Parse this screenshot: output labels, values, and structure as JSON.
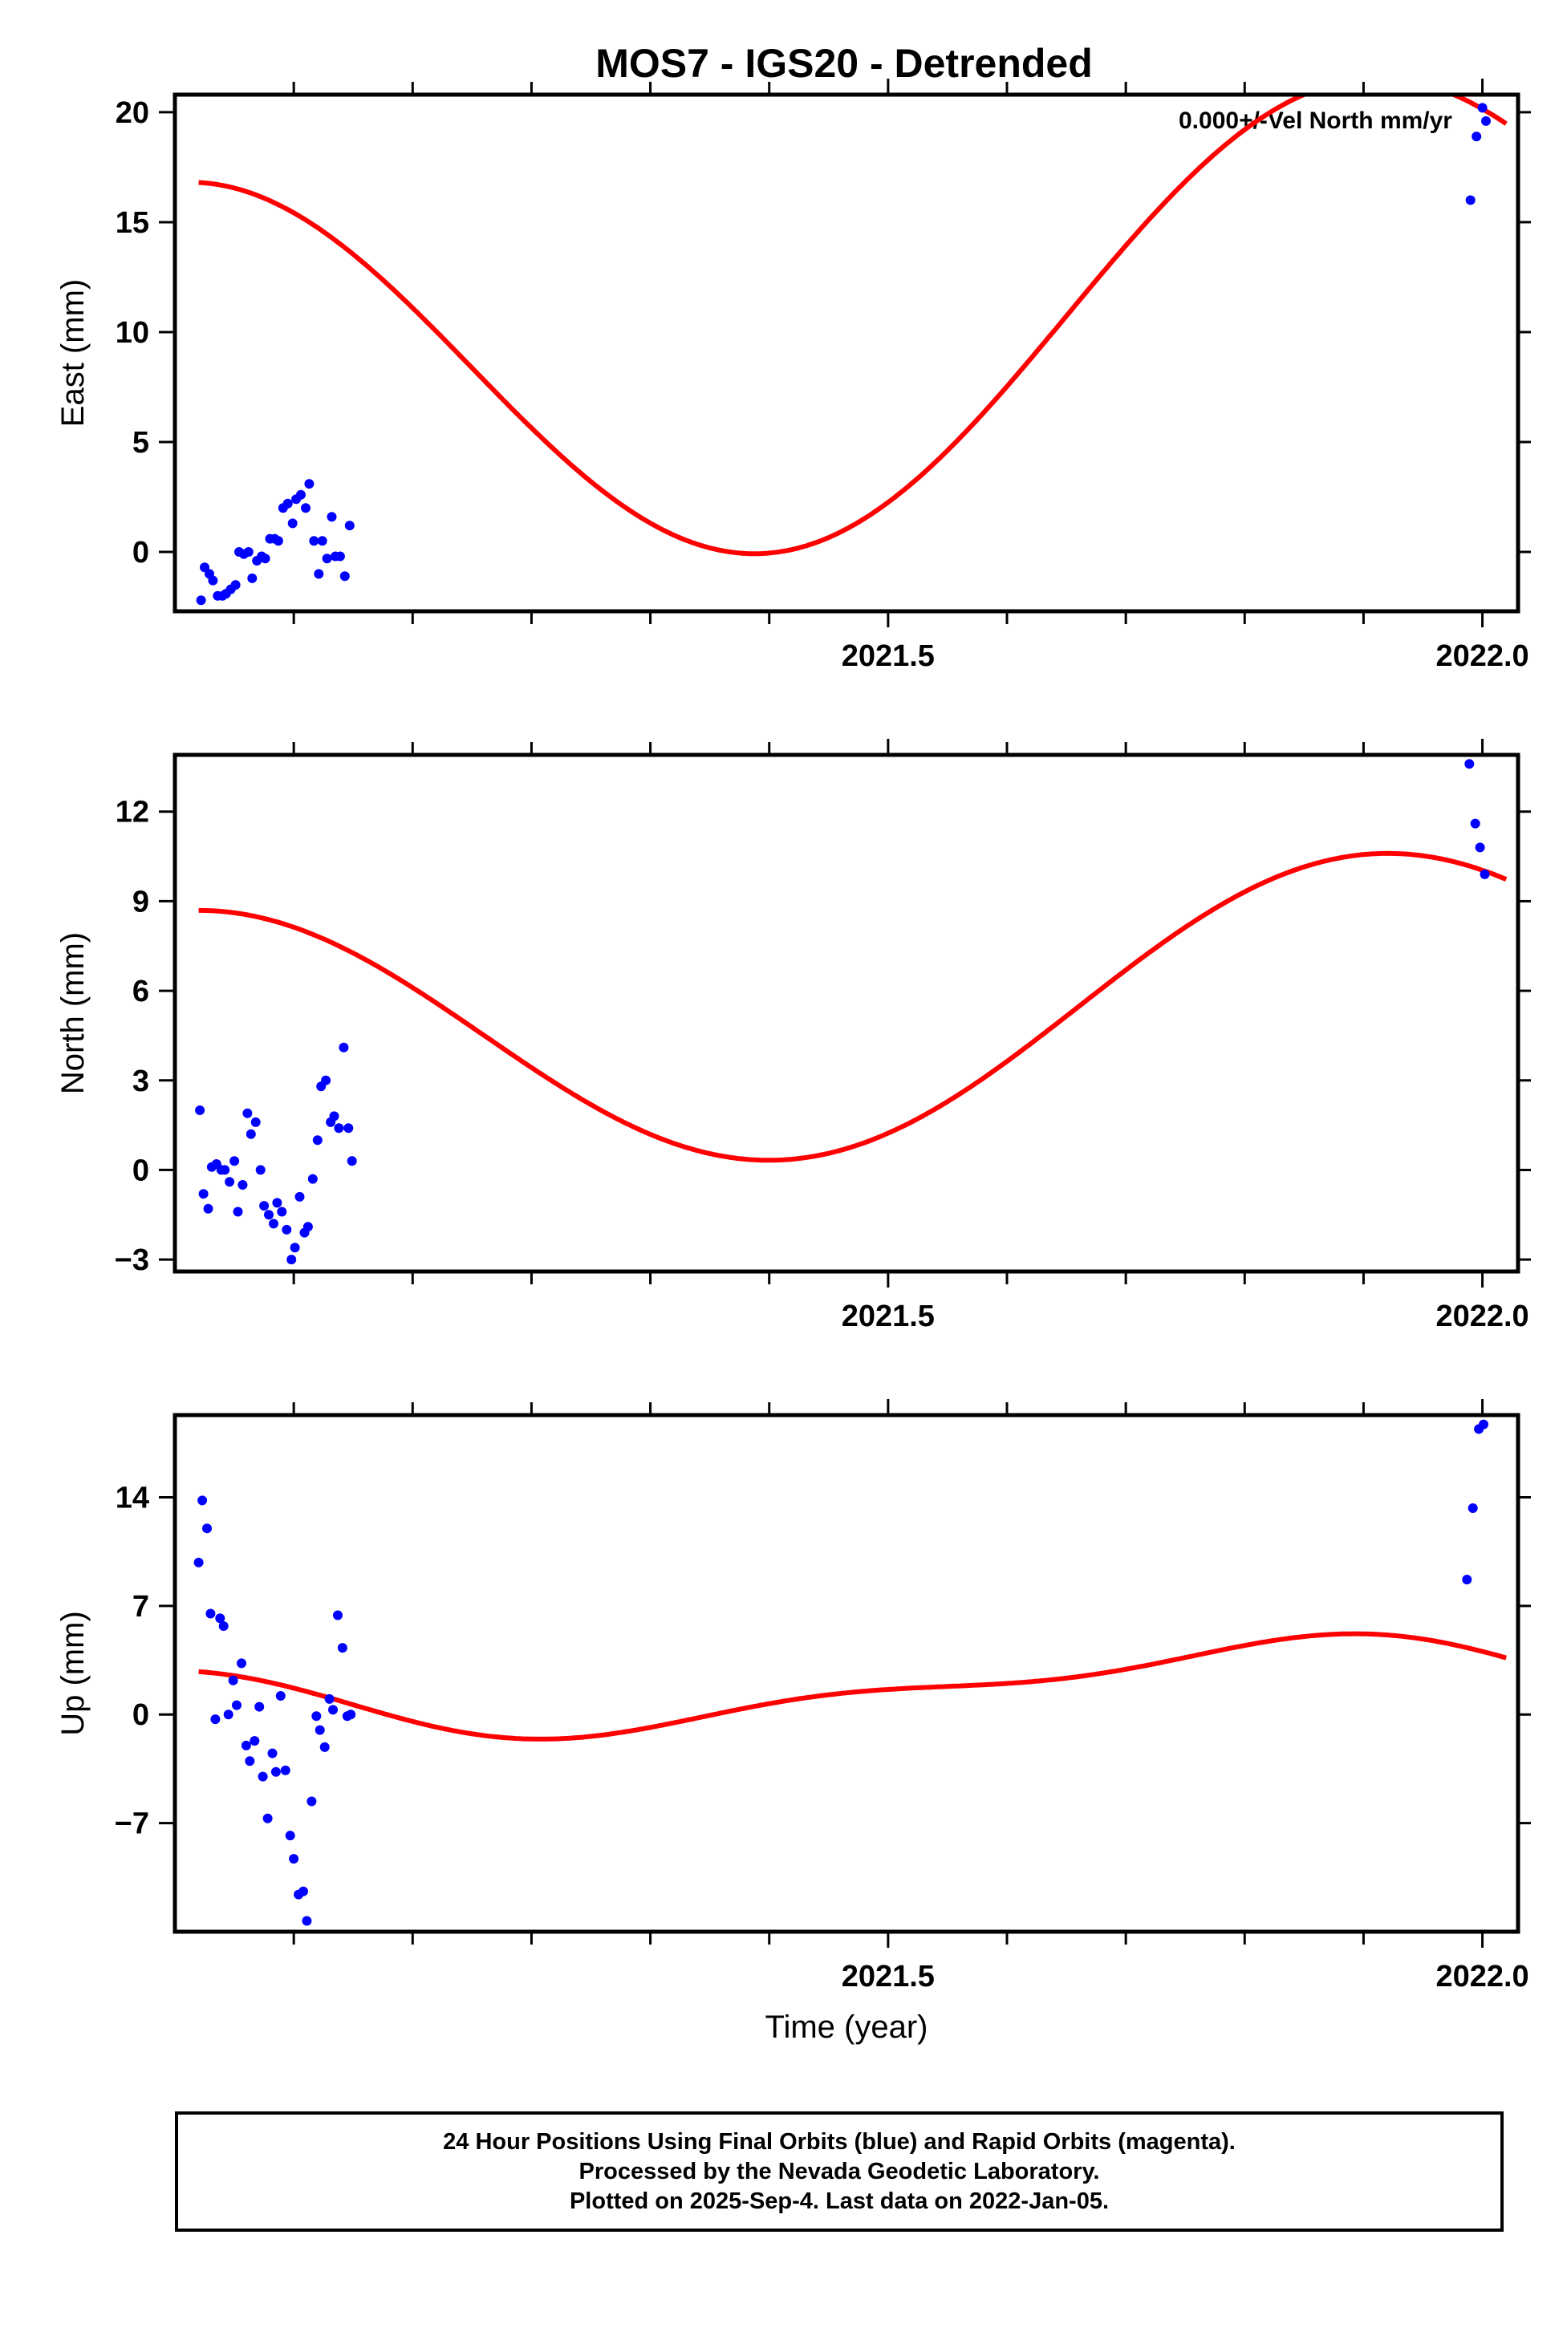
{
  "colors": {
    "data_points": "#0000ff",
    "model_curve": "#ff0000",
    "axes": "#000000"
  },
  "chart_data": [
    {
      "type": "scatter",
      "title": "MOS7 - IGS20 - Detrended",
      "annotation": "0.000+/-Vel North mm/yr",
      "xlabel": "",
      "ylabel": "East (mm)",
      "xlim": [
        2020.9,
        2022.03
      ],
      "ylim": [
        -2.7,
        20.8
      ],
      "x_ticks": [
        2021.5,
        2022.0
      ],
      "x_tick_labels": [
        "2021.5",
        "2022.0"
      ],
      "x_minor_ticks": [
        2021.0,
        2021.1,
        2021.2,
        2021.3,
        2021.4,
        2021.6,
        2021.7,
        2021.8,
        2021.9
      ],
      "y_ticks": [
        0,
        5,
        10,
        15,
        20
      ],
      "y_tick_labels": [
        "0",
        "5",
        "10",
        "15",
        "20"
      ],
      "grid": false,
      "series": [
        {
          "kind": "points",
          "color": "#0000ff",
          "x": [
            2020.922,
            2020.925,
            2020.929,
            2020.932,
            2020.936,
            2020.94,
            2020.943,
            2020.947,
            2020.951,
            2020.954,
            2020.958,
            2020.962,
            2020.965,
            2020.969,
            2020.973,
            2020.976,
            2020.98,
            2020.984,
            2020.987,
            2020.991,
            2020.995,
            2020.999,
            2021.002,
            2021.006,
            2021.01,
            2021.013,
            2021.017,
            2021.021,
            2021.024,
            2021.028,
            2021.032,
            2021.035,
            2021.039,
            2021.043,
            2021.047,
            2021.99,
            2021.995,
            2022.0,
            2022.003
          ],
          "y": [
            -2.2,
            -0.7,
            -1.0,
            -1.3,
            -2.0,
            -2.0,
            -1.9,
            -1.7,
            -1.5,
            0.0,
            -0.1,
            0.0,
            -1.2,
            -0.4,
            -0.2,
            -0.3,
            0.6,
            0.6,
            0.5,
            2.0,
            2.2,
            1.3,
            2.4,
            2.6,
            2.0,
            3.1,
            0.5,
            -1.0,
            0.5,
            -0.3,
            1.6,
            -0.2,
            -0.2,
            -1.1,
            1.2,
            16.0,
            18.9,
            20.2,
            19.6
          ]
        },
        {
          "kind": "curve",
          "color": "#ff0000",
          "offset": 9.88,
          "terms": [
            [
              9.6,
              0.65
            ]
          ],
          "trend": [
            -2.05,
            12.3
          ]
        }
      ]
    },
    {
      "type": "scatter",
      "xlabel": "",
      "ylabel": "North (mm)",
      "xlim": [
        2020.9,
        2022.03
      ],
      "ylim": [
        -3.4,
        13.9
      ],
      "x_ticks": [
        2021.5,
        2022.0
      ],
      "x_tick_labels": [
        "2021.5",
        "2022.0"
      ],
      "x_minor_ticks": [
        2021.0,
        2021.1,
        2021.2,
        2021.3,
        2021.4,
        2021.6,
        2021.7,
        2021.8,
        2021.9
      ],
      "y_ticks": [
        -3,
        0,
        3,
        6,
        9,
        12
      ],
      "y_tick_labels": [
        "−3",
        "0",
        "3",
        "6",
        "9",
        "12"
      ],
      "grid": false,
      "series": [
        {
          "kind": "points",
          "color": "#0000ff",
          "x": [
            2020.921,
            2020.924,
            2020.928,
            2020.931,
            2020.935,
            2020.939,
            2020.942,
            2020.946,
            2020.95,
            2020.953,
            2020.957,
            2020.961,
            2020.964,
            2020.968,
            2020.972,
            2020.975,
            2020.979,
            2020.983,
            2020.986,
            2020.99,
            2020.994,
            2020.998,
            2021.001,
            2021.005,
            2021.009,
            2021.012,
            2021.016,
            2021.02,
            2021.023,
            2021.027,
            2021.031,
            2021.034,
            2021.038,
            2021.042,
            2021.046,
            2021.049,
            2021.989,
            2021.994,
            2021.998,
            2022.002
          ],
          "y": [
            2.0,
            -0.8,
            -1.3,
            0.1,
            0.2,
            0.0,
            0.0,
            -0.4,
            0.3,
            -1.4,
            -0.5,
            1.9,
            1.2,
            1.6,
            0.0,
            -1.2,
            -1.5,
            -1.8,
            -1.1,
            -1.4,
            -2.0,
            -3.0,
            -2.6,
            -0.9,
            -2.1,
            -1.9,
            -0.3,
            1.0,
            2.8,
            3.0,
            1.6,
            1.8,
            1.4,
            4.1,
            1.4,
            0.3,
            13.6,
            11.6,
            10.8,
            9.9
          ]
        },
        {
          "kind": "curve",
          "color": "#ff0000",
          "offset": 5.1,
          "terms": [
            [
              4.65,
              0.66
            ]
          ],
          "trend": [
            0.45,
            5.2
          ]
        }
      ]
    },
    {
      "type": "scatter",
      "xlabel": "Time (year)",
      "ylabel": "Up (mm)",
      "xlim": [
        2020.9,
        2022.03
      ],
      "ylim": [
        -14,
        19.3
      ],
      "x_ticks": [
        2021.5,
        2022.0
      ],
      "x_tick_labels": [
        "2021.5",
        "2022.0"
      ],
      "x_minor_ticks": [
        2021.0,
        2021.1,
        2021.2,
        2021.3,
        2021.4,
        2021.6,
        2021.7,
        2021.8,
        2021.9
      ],
      "y_ticks": [
        -7,
        0,
        7,
        14
      ],
      "y_tick_labels": [
        "−7",
        "0",
        "7",
        "14"
      ],
      "grid": false,
      "series": [
        {
          "kind": "points",
          "color": "#0000ff",
          "x": [
            2020.92,
            2020.923,
            2020.927,
            2020.93,
            2020.934,
            2020.938,
            2020.941,
            2020.945,
            2020.949,
            2020.952,
            2020.956,
            2020.96,
            2020.963,
            2020.967,
            2020.971,
            2020.974,
            2020.978,
            2020.982,
            2020.985,
            2020.989,
            2020.993,
            2020.997,
            2021.0,
            2021.004,
            2021.008,
            2021.011,
            2021.015,
            2021.019,
            2021.022,
            2021.026,
            2021.03,
            2021.033,
            2021.037,
            2021.041,
            2021.045,
            2021.048,
            2021.987,
            2021.992,
            2021.997,
            2022.001
          ],
          "y": [
            9.8,
            13.8,
            12.0,
            6.5,
            -0.3,
            6.2,
            5.7,
            0.0,
            2.2,
            0.6,
            3.3,
            -2.0,
            -3.0,
            -1.7,
            0.5,
            -4.0,
            -6.7,
            -2.5,
            -3.7,
            1.2,
            -3.6,
            -7.8,
            -9.3,
            -11.6,
            -11.4,
            -13.3,
            -5.6,
            -0.1,
            -1.0,
            -2.1,
            1.0,
            0.3,
            6.4,
            4.3,
            -0.1,
            0.0,
            8.7,
            13.3,
            18.4,
            18.7
          ]
        },
        {
          "kind": "curve",
          "color": "#ff0000",
          "offset": 1.62,
          "terms": [
            [
              2.05,
              0.55
            ],
            [
              0.95,
              0.8
            ]
          ],
          "trend": [
            -0.55,
            4.0
          ]
        }
      ]
    }
  ],
  "caption": {
    "line1": "24 Hour Positions Using Final Orbits (blue) and Rapid Orbits (magenta).",
    "line2": "Processed by the Nevada Geodetic Laboratory.",
    "line3": "Plotted on 2025-Sep-4. Last data on 2022-Jan-05."
  }
}
